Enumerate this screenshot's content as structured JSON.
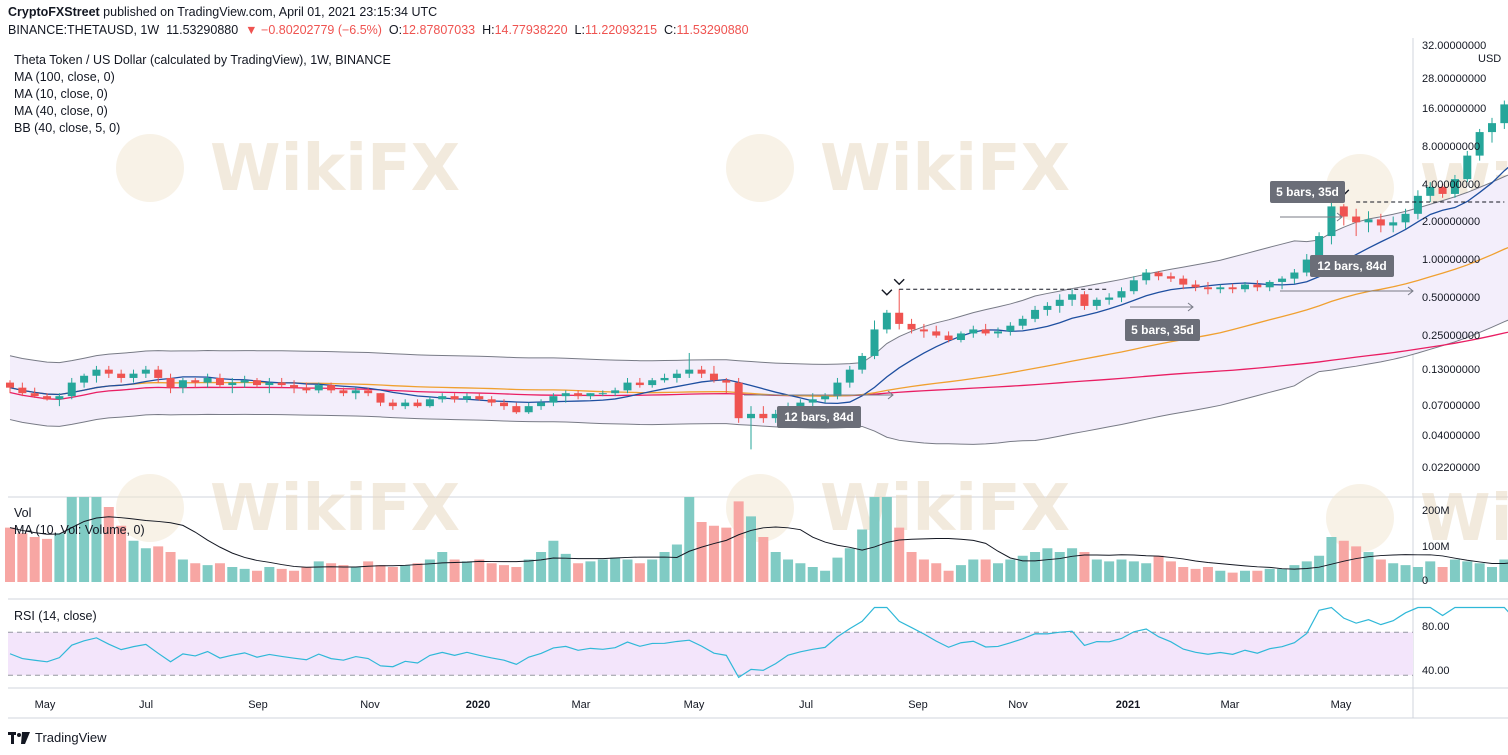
{
  "header": {
    "publisher": "CryptoFXStreet",
    "published_text": " published on TradingView.com, April 01, 2021 23:15:34 UTC",
    "symbol": "BINANCE:THETAUSD, 1W",
    "last": "11.53290880",
    "change": "−0.80202779 (−6.5%)",
    "o_label": "O:",
    "o": "12.87807033",
    "h_label": "H:",
    "h": "14.77938220",
    "l_label": "L:",
    "l": "11.22093215",
    "c_label": "C:",
    "c": "11.53290880"
  },
  "indicators": {
    "title": "Theta Token / US Dollar (calculated by TradingView), 1W, BINANCE",
    "ma100": "MA (100, close, 0)",
    "ma10": "MA (10, close, 0)",
    "ma40": "MA (40, close, 0)",
    "bb": "BB (40, close, 5, 0)"
  },
  "volume_pane": {
    "label": "Vol",
    "ma_label": "MA (10, Vol: Volume, 0)",
    "ticks": [
      "200M",
      "100M",
      "0"
    ]
  },
  "rsi_pane": {
    "label": "RSI (14, close)",
    "ticks": [
      "80.00",
      "40.00"
    ]
  },
  "price_axis": {
    "currency": "USD",
    "ticks": [
      "32.00000000",
      "28.00000000",
      "16.00000000",
      "8.00000000",
      "4.00000000",
      "2.00000000",
      "1.00000000",
      "0.50000000",
      "0.25000000",
      "0.13000000",
      "0.07000000",
      "0.04000000",
      "0.02200000"
    ]
  },
  "time_axis": [
    "May",
    "Jul",
    "Sep",
    "Nov",
    "2020",
    "Mar",
    "May",
    "Jul",
    "Sep",
    "Nov",
    "2021",
    "Mar",
    "May"
  ],
  "annotations": [
    "5 bars, 35d",
    "12 bars, 84d",
    "5 bars, 35d",
    "12 bars, 84d"
  ],
  "watermark": "WikiFX",
  "footer": {
    "brand": "TradingView"
  },
  "colors": {
    "up": "#26a69a",
    "down": "#ef5350",
    "vol_up": "#80cbc4",
    "vol_down": "#f7a6a3",
    "ma10": "#1e4fa0",
    "ma40": "#f0a030",
    "ma100": "#e91e63",
    "bb": "#787b86",
    "bb_fill": "#f3eefb",
    "rsi": "#2fb8d8",
    "rsi_band": "#f3e5fb"
  },
  "chart_data": {
    "type": "candlestick",
    "timeframe": "1W",
    "y_scale": "log",
    "ylim": [
      0.017,
      44
    ],
    "candles": [
      [
        0.12,
        0.125,
        0.1,
        0.11
      ],
      [
        0.11,
        0.12,
        0.095,
        0.1
      ],
      [
        0.1,
        0.11,
        0.092,
        0.095
      ],
      [
        0.095,
        0.1,
        0.088,
        0.09
      ],
      [
        0.09,
        0.1,
        0.08,
        0.095
      ],
      [
        0.095,
        0.13,
        0.09,
        0.12
      ],
      [
        0.12,
        0.14,
        0.11,
        0.135
      ],
      [
        0.135,
        0.16,
        0.12,
        0.15
      ],
      [
        0.15,
        0.16,
        0.13,
        0.14
      ],
      [
        0.14,
        0.15,
        0.12,
        0.13
      ],
      [
        0.13,
        0.15,
        0.12,
        0.14
      ],
      [
        0.14,
        0.16,
        0.13,
        0.15
      ],
      [
        0.15,
        0.16,
        0.12,
        0.13
      ],
      [
        0.13,
        0.14,
        0.1,
        0.11
      ],
      [
        0.11,
        0.13,
        0.1,
        0.125
      ],
      [
        0.125,
        0.13,
        0.11,
        0.12
      ],
      [
        0.12,
        0.14,
        0.11,
        0.13
      ],
      [
        0.13,
        0.14,
        0.11,
        0.115
      ],
      [
        0.115,
        0.13,
        0.1,
        0.12
      ],
      [
        0.12,
        0.135,
        0.11,
        0.125
      ],
      [
        0.125,
        0.13,
        0.11,
        0.115
      ],
      [
        0.115,
        0.13,
        0.1,
        0.12
      ],
      [
        0.12,
        0.13,
        0.11,
        0.115
      ],
      [
        0.115,
        0.125,
        0.1,
        0.11
      ],
      [
        0.11,
        0.12,
        0.1,
        0.105
      ],
      [
        0.105,
        0.12,
        0.1,
        0.115
      ],
      [
        0.115,
        0.12,
        0.1,
        0.105
      ],
      [
        0.105,
        0.11,
        0.095,
        0.1
      ],
      [
        0.1,
        0.11,
        0.09,
        0.105
      ],
      [
        0.105,
        0.11,
        0.095,
        0.1
      ],
      [
        0.1,
        0.1,
        0.08,
        0.085
      ],
      [
        0.085,
        0.09,
        0.075,
        0.08
      ],
      [
        0.08,
        0.09,
        0.076,
        0.085
      ],
      [
        0.085,
        0.09,
        0.078,
        0.08
      ],
      [
        0.08,
        0.095,
        0.078,
        0.09
      ],
      [
        0.09,
        0.1,
        0.085,
        0.095
      ],
      [
        0.095,
        0.1,
        0.085,
        0.09
      ],
      [
        0.09,
        0.1,
        0.085,
        0.095
      ],
      [
        0.095,
        0.1,
        0.088,
        0.09
      ],
      [
        0.09,
        0.095,
        0.08,
        0.085
      ],
      [
        0.085,
        0.09,
        0.075,
        0.08
      ],
      [
        0.08,
        0.085,
        0.07,
        0.072
      ],
      [
        0.072,
        0.085,
        0.07,
        0.08
      ],
      [
        0.08,
        0.09,
        0.075,
        0.085
      ],
      [
        0.085,
        0.1,
        0.08,
        0.095
      ],
      [
        0.095,
        0.105,
        0.085,
        0.1
      ],
      [
        0.1,
        0.105,
        0.09,
        0.095
      ],
      [
        0.095,
        0.1,
        0.09,
        0.1
      ],
      [
        0.1,
        0.105,
        0.095,
        0.1
      ],
      [
        0.1,
        0.11,
        0.095,
        0.105
      ],
      [
        0.105,
        0.13,
        0.1,
        0.12
      ],
      [
        0.12,
        0.13,
        0.11,
        0.115
      ],
      [
        0.115,
        0.13,
        0.11,
        0.125
      ],
      [
        0.125,
        0.14,
        0.12,
        0.13
      ],
      [
        0.13,
        0.15,
        0.12,
        0.14
      ],
      [
        0.14,
        0.2,
        0.13,
        0.15
      ],
      [
        0.15,
        0.16,
        0.13,
        0.14
      ],
      [
        0.14,
        0.16,
        0.12,
        0.125
      ],
      [
        0.125,
        0.13,
        0.1,
        0.12
      ],
      [
        0.12,
        0.13,
        0.06,
        0.065
      ],
      [
        0.065,
        0.08,
        0.038,
        0.07
      ],
      [
        0.07,
        0.08,
        0.06,
        0.065
      ],
      [
        0.065,
        0.075,
        0.06,
        0.07
      ],
      [
        0.07,
        0.085,
        0.065,
        0.08
      ],
      [
        0.08,
        0.09,
        0.07,
        0.085
      ],
      [
        0.085,
        0.1,
        0.08,
        0.09
      ],
      [
        0.09,
        0.1,
        0.085,
        0.095
      ],
      [
        0.095,
        0.13,
        0.09,
        0.12
      ],
      [
        0.12,
        0.16,
        0.11,
        0.15
      ],
      [
        0.15,
        0.2,
        0.14,
        0.19
      ],
      [
        0.19,
        0.35,
        0.18,
        0.3
      ],
      [
        0.3,
        0.42,
        0.28,
        0.4
      ],
      [
        0.4,
        0.6,
        0.3,
        0.33
      ],
      [
        0.33,
        0.36,
        0.28,
        0.3
      ],
      [
        0.3,
        0.33,
        0.26,
        0.29
      ],
      [
        0.29,
        0.32,
        0.26,
        0.27
      ],
      [
        0.27,
        0.29,
        0.24,
        0.25
      ],
      [
        0.25,
        0.29,
        0.24,
        0.28
      ],
      [
        0.28,
        0.32,
        0.26,
        0.3
      ],
      [
        0.3,
        0.33,
        0.27,
        0.28
      ],
      [
        0.28,
        0.31,
        0.26,
        0.29
      ],
      [
        0.29,
        0.34,
        0.27,
        0.32
      ],
      [
        0.32,
        0.38,
        0.3,
        0.36
      ],
      [
        0.36,
        0.45,
        0.34,
        0.42
      ],
      [
        0.42,
        0.48,
        0.38,
        0.45
      ],
      [
        0.45,
        0.55,
        0.4,
        0.5
      ],
      [
        0.5,
        0.6,
        0.45,
        0.55
      ],
      [
        0.55,
        0.58,
        0.42,
        0.45
      ],
      [
        0.45,
        0.52,
        0.42,
        0.5
      ],
      [
        0.5,
        0.56,
        0.46,
        0.52
      ],
      [
        0.52,
        0.62,
        0.48,
        0.58
      ],
      [
        0.58,
        0.75,
        0.55,
        0.7
      ],
      [
        0.7,
        0.85,
        0.65,
        0.8
      ],
      [
        0.8,
        0.82,
        0.7,
        0.75
      ],
      [
        0.75,
        0.8,
        0.68,
        0.72
      ],
      [
        0.72,
        0.76,
        0.6,
        0.65
      ],
      [
        0.65,
        0.7,
        0.58,
        0.62
      ],
      [
        0.62,
        0.68,
        0.55,
        0.6
      ],
      [
        0.6,
        0.65,
        0.56,
        0.62
      ],
      [
        0.62,
        0.66,
        0.56,
        0.6
      ],
      [
        0.6,
        0.68,
        0.57,
        0.65
      ],
      [
        0.65,
        0.7,
        0.58,
        0.62
      ],
      [
        0.62,
        0.7,
        0.58,
        0.68
      ],
      [
        0.68,
        0.75,
        0.6,
        0.72
      ],
      [
        0.72,
        0.85,
        0.66,
        0.8
      ],
      [
        0.8,
        1.1,
        0.75,
        1.0
      ],
      [
        1.0,
        1.6,
        0.9,
        1.5
      ],
      [
        1.5,
        2.8,
        1.3,
        2.5
      ],
      [
        2.5,
        2.6,
        1.8,
        2.1
      ],
      [
        2.1,
        2.4,
        1.5,
        1.9
      ],
      [
        1.9,
        2.3,
        1.6,
        2.0
      ],
      [
        2.0,
        2.2,
        1.6,
        1.8
      ],
      [
        1.8,
        2.1,
        1.6,
        1.9
      ],
      [
        1.9,
        2.4,
        1.7,
        2.2
      ],
      [
        2.2,
        3.3,
        2.0,
        3.0
      ],
      [
        3.0,
        3.8,
        2.7,
        3.5
      ],
      [
        3.5,
        3.7,
        2.9,
        3.1
      ],
      [
        3.1,
        4.3,
        2.9,
        4.0
      ],
      [
        4.0,
        6.5,
        3.8,
        6.0
      ],
      [
        6.0,
        9.5,
        5.5,
        9.0
      ],
      [
        9.0,
        11.5,
        7.5,
        10.5
      ],
      [
        10.5,
        15.5,
        9.5,
        14.5
      ],
      [
        12.88,
        14.78,
        11.22,
        11.53
      ]
    ],
    "volume_scale": [
      0,
      200000000
    ],
    "rsi_range": [
      20,
      100
    ],
    "rsi_levels": [
      70,
      30
    ]
  }
}
